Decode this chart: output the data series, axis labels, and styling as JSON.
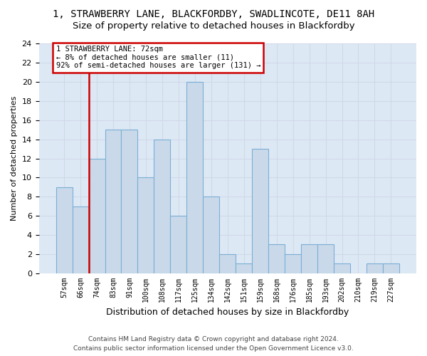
{
  "title": "1, STRAWBERRY LANE, BLACKFORDBY, SWADLINCOTE, DE11 8AH",
  "subtitle": "Size of property relative to detached houses in Blackfordby",
  "xlabel": "Distribution of detached houses by size in Blackfordby",
  "ylabel": "Number of detached properties",
  "bin_labels": [
    "57sqm",
    "66sqm",
    "74sqm",
    "83sqm",
    "91sqm",
    "100sqm",
    "108sqm",
    "117sqm",
    "125sqm",
    "134sqm",
    "142sqm",
    "151sqm",
    "159sqm",
    "168sqm",
    "176sqm",
    "185sqm",
    "193sqm",
    "202sqm",
    "210sqm",
    "219sqm",
    "227sqm"
  ],
  "bar_values": [
    9,
    7,
    12,
    15,
    15,
    10,
    14,
    6,
    20,
    8,
    2,
    1,
    13,
    3,
    2,
    3,
    3,
    1,
    0,
    1,
    1
  ],
  "bar_color": "#c9d9ea",
  "bar_edge_color": "#7bafd4",
  "grid_color": "#d0d8e8",
  "vline_index": 2,
  "vline_color": "#cc0000",
  "annotation_line1": "1 STRAWBERRY LANE: 72sqm",
  "annotation_line2": "← 8% of detached houses are smaller (11)",
  "annotation_line3": "92% of semi-detached houses are larger (131) →",
  "annotation_box_edge_color": "#cc0000",
  "footer_line1": "Contains HM Land Registry data © Crown copyright and database right 2024.",
  "footer_line2": "Contains public sector information licensed under the Open Government Licence v3.0.",
  "ylim": [
    0,
    24
  ],
  "yticks": [
    0,
    2,
    4,
    6,
    8,
    10,
    12,
    14,
    16,
    18,
    20,
    22,
    24
  ],
  "bg_color": "#dde8f5",
  "title_fontsize": 10,
  "subtitle_fontsize": 9.5
}
